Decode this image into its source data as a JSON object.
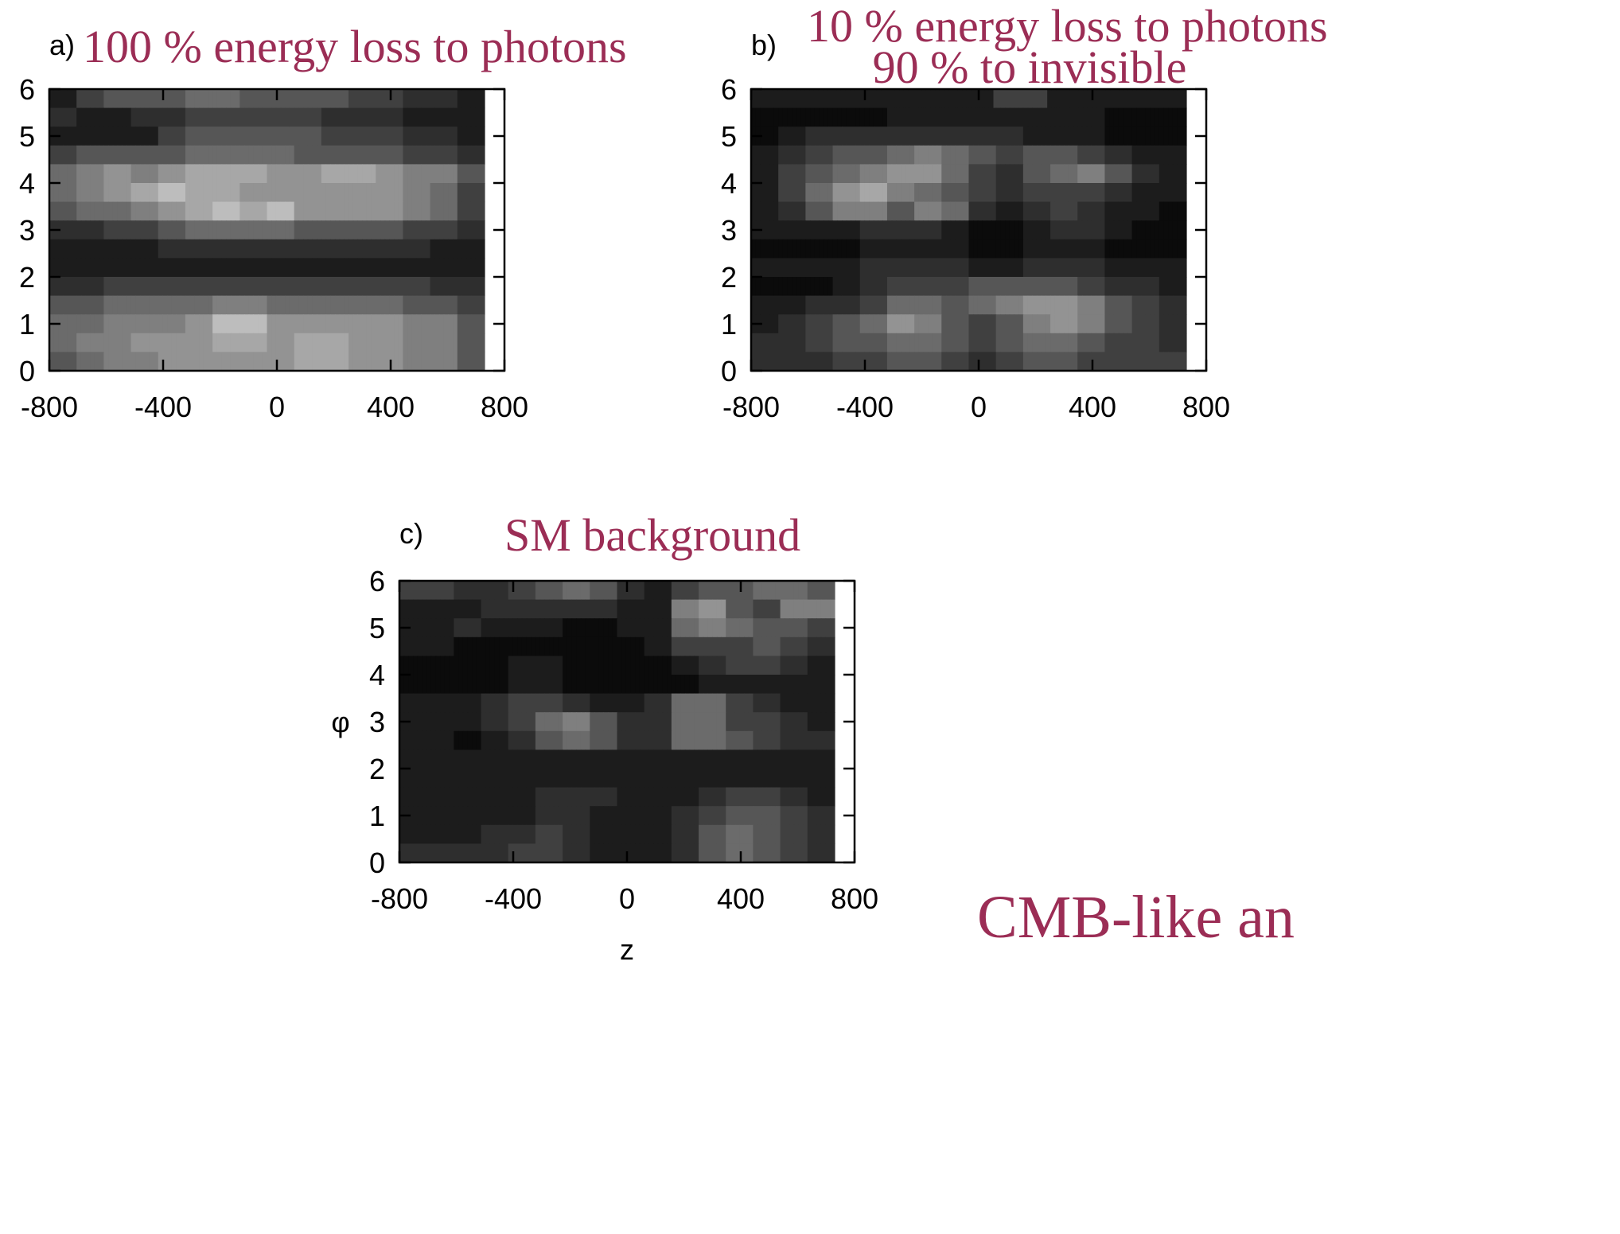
{
  "panels": [
    {
      "label": "a)",
      "title_lines": [
        "100 % energy loss to photons"
      ]
    },
    {
      "label": "b)",
      "title_lines": [
        "10 % energy loss to photons",
        "90 % to invisible"
      ]
    },
    {
      "label": "c)",
      "title_lines": [
        "SM background"
      ]
    }
  ],
  "footer_text": "CMB-like an",
  "chart_data": [
    {
      "type": "heatmap",
      "title": "100 % energy loss to photons",
      "xlabel": "",
      "ylabel": "",
      "xlim": [
        -800,
        800
      ],
      "ylim": [
        0,
        6
      ],
      "xticks": [
        "-800",
        "-400",
        "0",
        "400",
        "800"
      ],
      "yticks": [
        "0",
        "1",
        "2",
        "3",
        "4",
        "5",
        "6"
      ],
      "x_range": [
        -800,
        730
      ],
      "y_range": [
        0,
        6
      ],
      "colormap": "grayscale",
      "rows_top_to_bottom": [
        "222222444444555555555555555555666666666666555555555555555555555555444444444444333333333333222222",
        "333333222222222222333333333333444444444444444444444444444444333333333333333333222222222222222222",
        "222222222222222222222222444444555555555555555555555555555555444444444444444444333333333333222222",
        "444444555555555555555555555555666666666666666666666666555555555555555555555555444444444444333333",
        "666666777777888888777777888888999999999999999999888888888888999999999999888888777777777777555555",
        "666666777777888888999999aaaaaa999999999999888888888888888888888888888888888888777777666666444444",
        "555555666666666666777777888888999999aaaaaa999999aaaaaa888888888888888888888888777777666666444444",
        "333333333333444444444444555555666666666666666666666666555555555555555555555555444444444444333333",
        "222222222222222222222222333333333333333333333333333333333333333333333333333333333333222222222222",
        "222222222222222222222222222222222222222222222222222222222222222222222222222222222222222222222222",
        "333333333333444444444444444444444444444444444444444444444444444444444444444444444444333333333333",
        "555555555555666666666666666666666666777777777777666666666666666666666666666666555555555555444444",
        "666666666666777777777777777777888888aaaaaaaaaaaa888888888888888888888888888888777777777777555555",
        "666666777777777777888888888888888888999999999999888888999999999999888888888888777777777777555555",
        "555555666666777777777777888888888888888888888888888888999999999999888888888888777777777777555555"
      ]
    },
    {
      "type": "heatmap",
      "title": "10 % energy loss to photons 90 % to invisible",
      "xlabel": "",
      "ylabel": "",
      "xlim": [
        -800,
        800
      ],
      "ylim": [
        0,
        6
      ],
      "xticks": [
        "-800",
        "-400",
        "0",
        "400",
        "800"
      ],
      "yticks": [
        "0",
        "1",
        "2",
        "3",
        "4",
        "5",
        "6"
      ],
      "x_range": [
        -800,
        730
      ],
      "y_range": [
        0,
        6
      ],
      "colormap": "grayscale",
      "rows_top_to_bottom": [
        "2222222222222222222222222222222222222222222222222222224444444444442222222222222222222222222222222",
        "111111111111111111111111111111222222222222222222222222222222222222222222222222111111111111111111",
        "111111222222333333333333333333333333333333333333333333333333222222222222222222111111111111111111",
        "222222333333444444555555555555666666777777666666555555444444555555555555444444333333222222222222",
        "222222444444555555666666777777888888888888666666444444333333555555666666777777555555333333222222",
        "222222444444666666888888999999777777666666555555444444333333444444444444444444333333222222222222",
        "222222333333555555777777777777555555777777666666333333222222333333444444333333222222222222111111",
        "222222222222222222222222333333333333333333222222111111111111222222333333333333222222111111111111",
        "111111111111111111111111222222222222222222222222111111111111222222222222222222111111111111111111",
        "222222222222222222222222333333333333333333333333222222222222333333333333333333222222222222222222",
        "111111111111111111222222333333444444444444444444555555555555555555555555444444333333333333222222",
        "222222222222333333333333444444666666666666555555666666777777888888888888777777555555444444333333",
        "222222333333444444555555666666888888777777555555444444555555777777888888777777555555444444333333",
        "333333333333444444555555555555666666666666555555444444555555666666666666555555444444444444333333",
        "333333333333333333444444444444555555555555444444333333444444555555555555444444444444444444444444"
      ]
    },
    {
      "type": "heatmap",
      "title": "SM background",
      "xlabel": "z",
      "ylabel": "φ",
      "xlim": [
        -800,
        800
      ],
      "ylim": [
        0,
        6
      ],
      "xticks": [
        "-800",
        "-400",
        "0",
        "400",
        "800"
      ],
      "yticks": [
        "0",
        "1",
        "2",
        "3",
        "4",
        "5",
        "6"
      ],
      "x_range": [
        -800,
        730
      ],
      "y_range": [
        0,
        6
      ],
      "colormap": "grayscale",
      "rows_top_to_bottom": [
        "444444444444333333333333444444555555666666555555333333222222444444555555555555666666666666555555",
        "222222222222222222333333333333333333333333333333222222222222777777888888555555444444777777777777",
        "222222222222333333222222222222222222111111111111222222222222666666777777666666555555555555444444",
        "222222222222111111111111111111111111111111111111111111222222444444444444444444555555444444333333",
        "111111111111111111111111222222222222111111111111111111111111222222333333444444444444333333222222",
        "111111111111111111111111222222222222111111111111111111111111111111222222222222222222222222222222",
        "222222222222222222333333444444444444333333222222222222333333666666666666444444333333222222222222",
        "222222222222222222333333444444666666777777555555333333333333666666666666444444444444333333222222",
        "222222222222111111222222333333555555666666555555333333333333666666666666555555444444333333333333",
        "222222222222222222222222222222222222222222222222222222222222222222222222222222222222222222222222",
        "222222222222222222222222222222222222222222222222222222222222222222222222222222222222222222222222",
        "222222222222222222222222222222333333333333333333222222222222222222333333444444444444333333222222",
        "222222222222222222222222222222333333333333222222222222222222333333444444555555555555444444333333",
        "222222222222222222333333333333444444333333222222222222222222333333555555666666555555444444333333",
        "333333333333333333333333444444444444333333222222222222222222333333555555666666555555444444333333"
      ]
    }
  ]
}
